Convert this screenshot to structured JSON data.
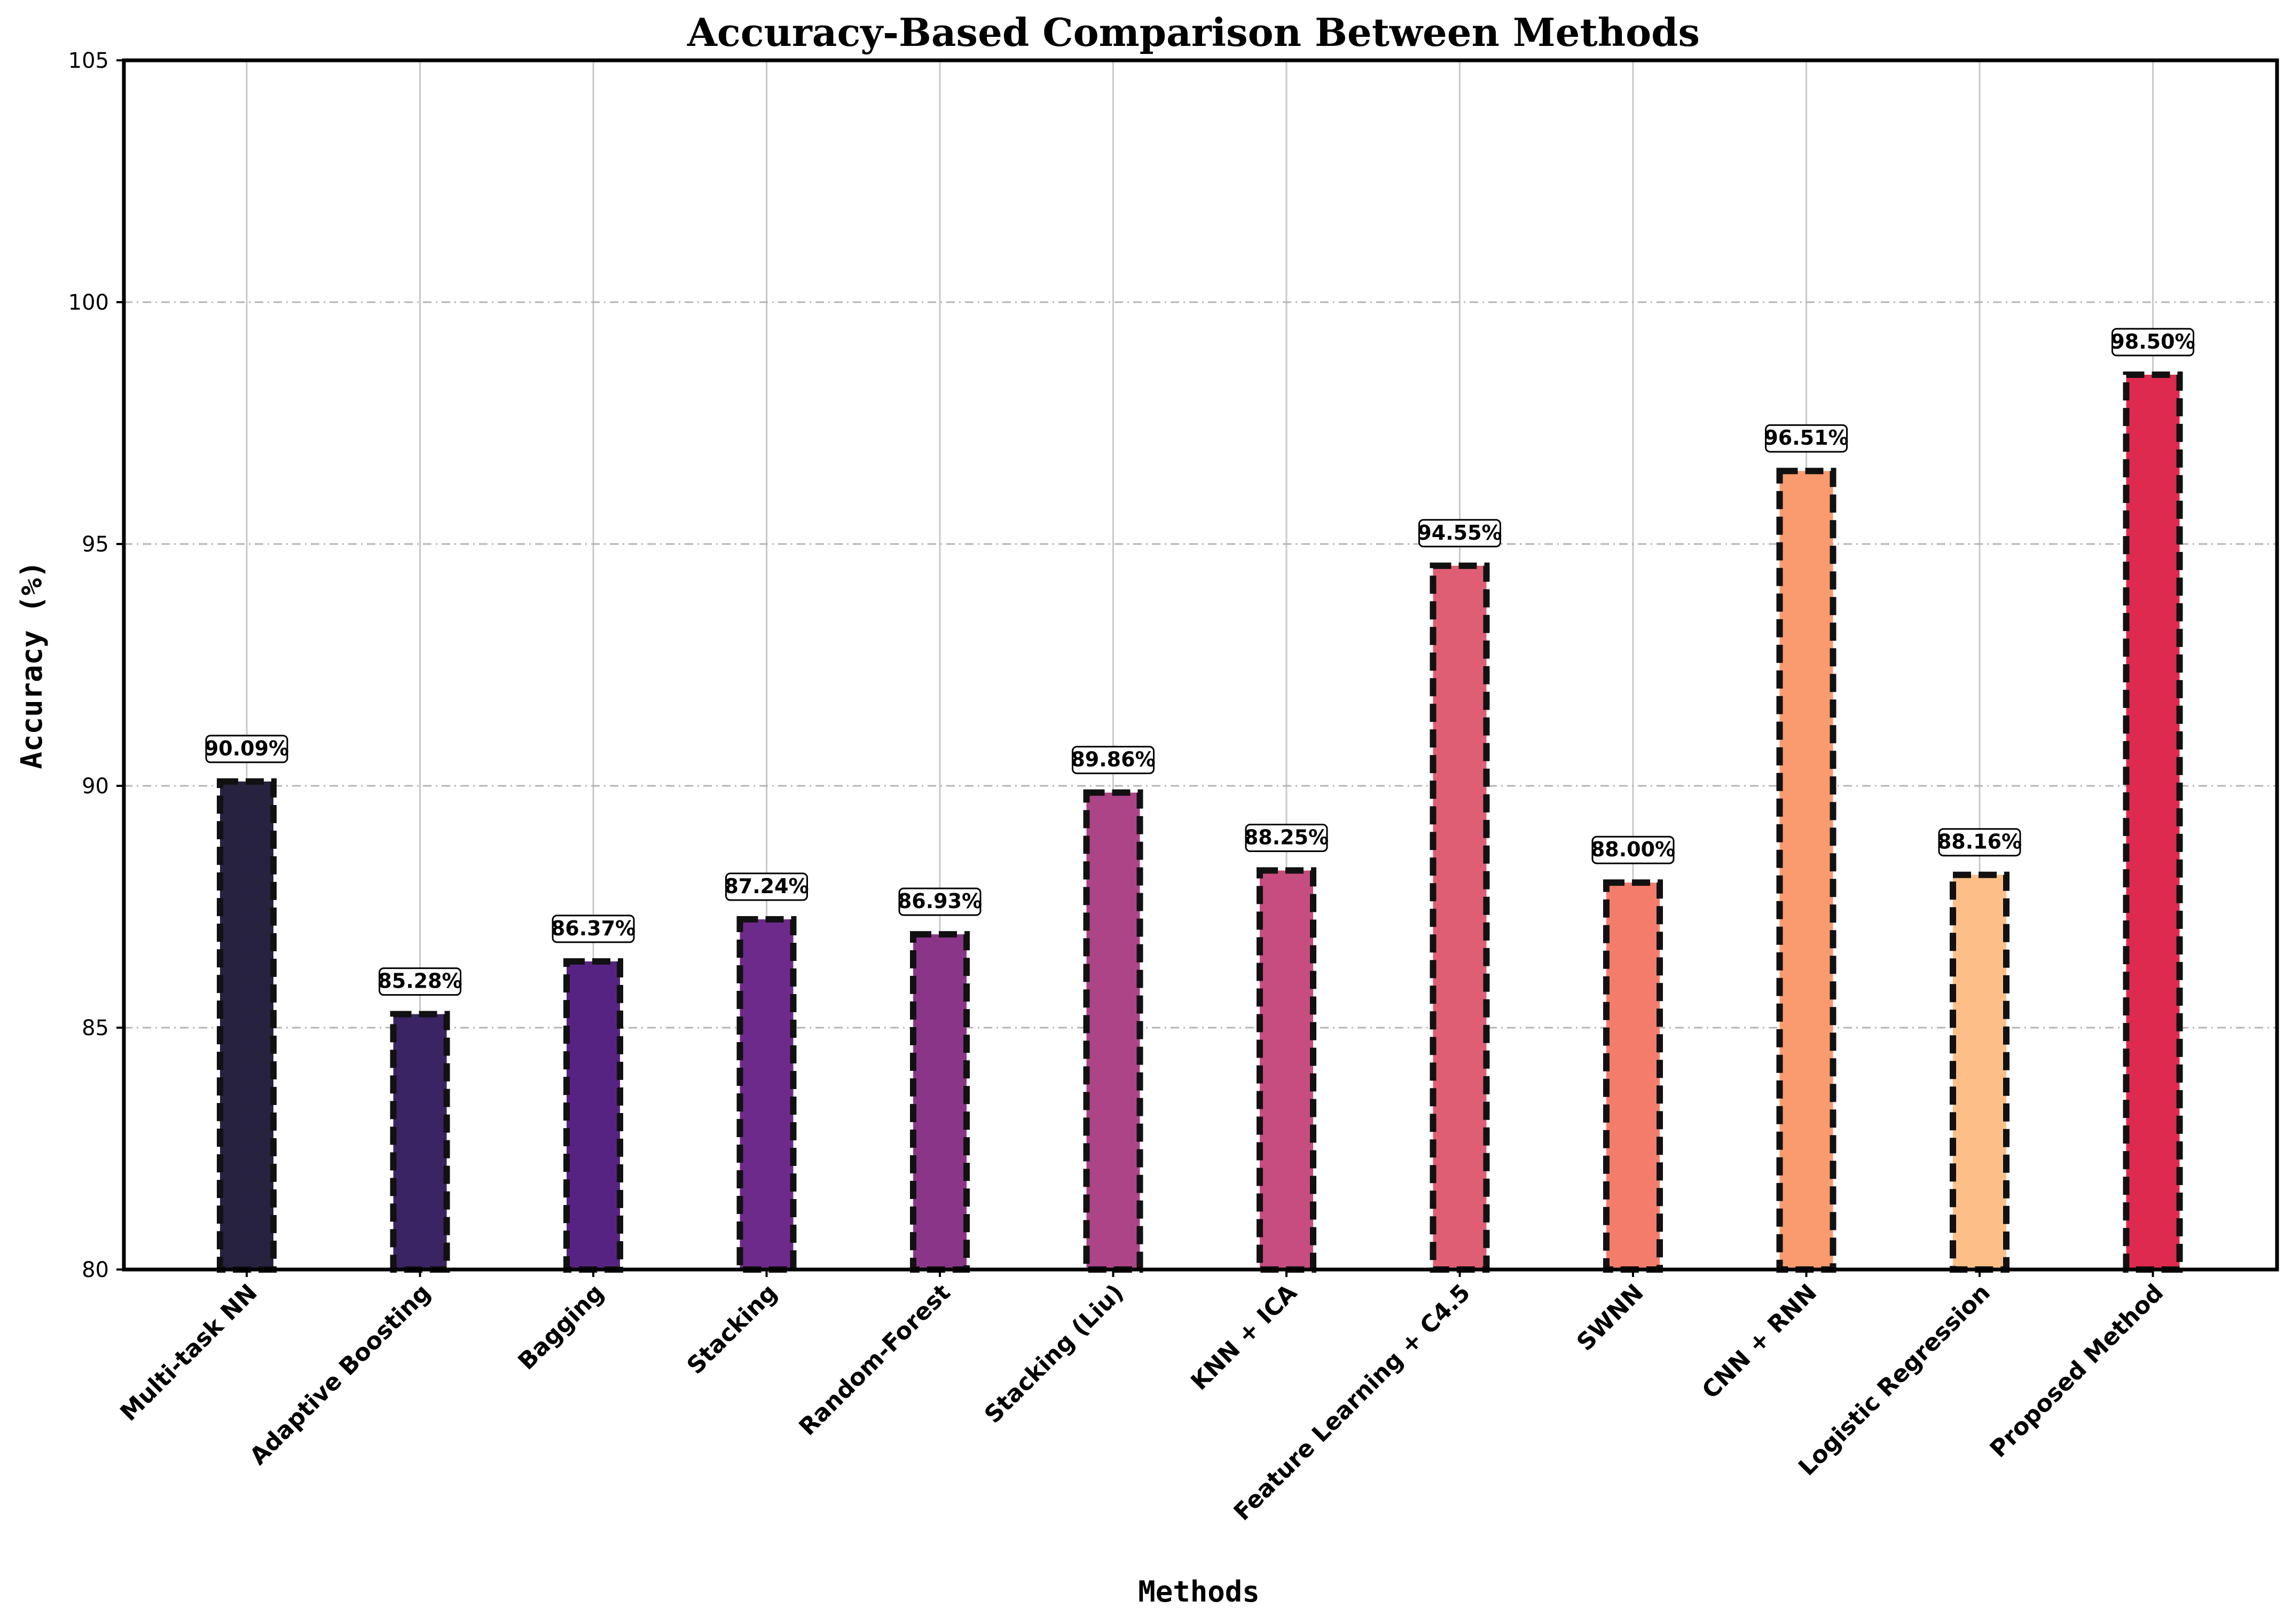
{
  "chart_data": {
    "type": "bar",
    "title": "Accuracy-Based Comparison Between Methods",
    "xlabel": "Methods",
    "ylabel": "Accuracy (%)",
    "ylim": [
      80,
      105
    ],
    "yticks": [
      80,
      85,
      90,
      95,
      100,
      105
    ],
    "grid": true,
    "categories": [
      "Multi-task NN",
      "Adaptive Boosting",
      "Bagging",
      "Stacking",
      "Random-Forest",
      "Stacking (Liu)",
      "KNN + ICA",
      "Feature Learning + C4.5",
      "SWNN",
      "CNN + RNN",
      "Logistic Regression",
      "Proposed Method"
    ],
    "values": [
      90.09,
      85.28,
      86.37,
      87.24,
      86.93,
      89.86,
      88.25,
      94.55,
      88.0,
      96.51,
      88.16,
      98.5
    ],
    "data_labels": [
      "90.09%",
      "85.28%",
      "86.37%",
      "87.24%",
      "86.93%",
      "89.86%",
      "88.25%",
      "94.55%",
      "88.00%",
      "96.51%",
      "88.16%",
      "98.50%"
    ],
    "colors": [
      "#27223f",
      "#3b2464",
      "#572383",
      "#6e2a8a",
      "#8b3589",
      "#ad4487",
      "#c74c80",
      "#e05e73",
      "#f47c6b",
      "#fa9a6f",
      "#fdbf87",
      "#df2a50"
    ]
  }
}
